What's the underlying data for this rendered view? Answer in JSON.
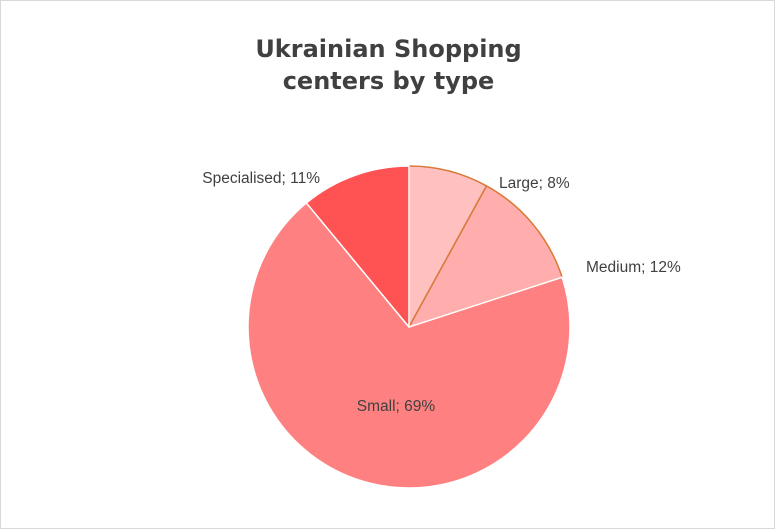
{
  "chart_data": {
    "type": "pie",
    "title": "Ukrainian  Shopping\ncenters by type",
    "categories": [
      "Large",
      "Medium",
      "Small",
      "Specialised"
    ],
    "values": [
      8,
      12,
      69,
      11
    ],
    "labels": [
      "Large; 8%",
      "Medium; 12%",
      "Small; 69%",
      "Specialised; 11%"
    ],
    "colors": [
      "#ffc0c0",
      "#ffadad",
      "#ff8080",
      "#ff5252"
    ],
    "start": "12 o'clock",
    "direction": "clockwise",
    "legend": "none"
  }
}
